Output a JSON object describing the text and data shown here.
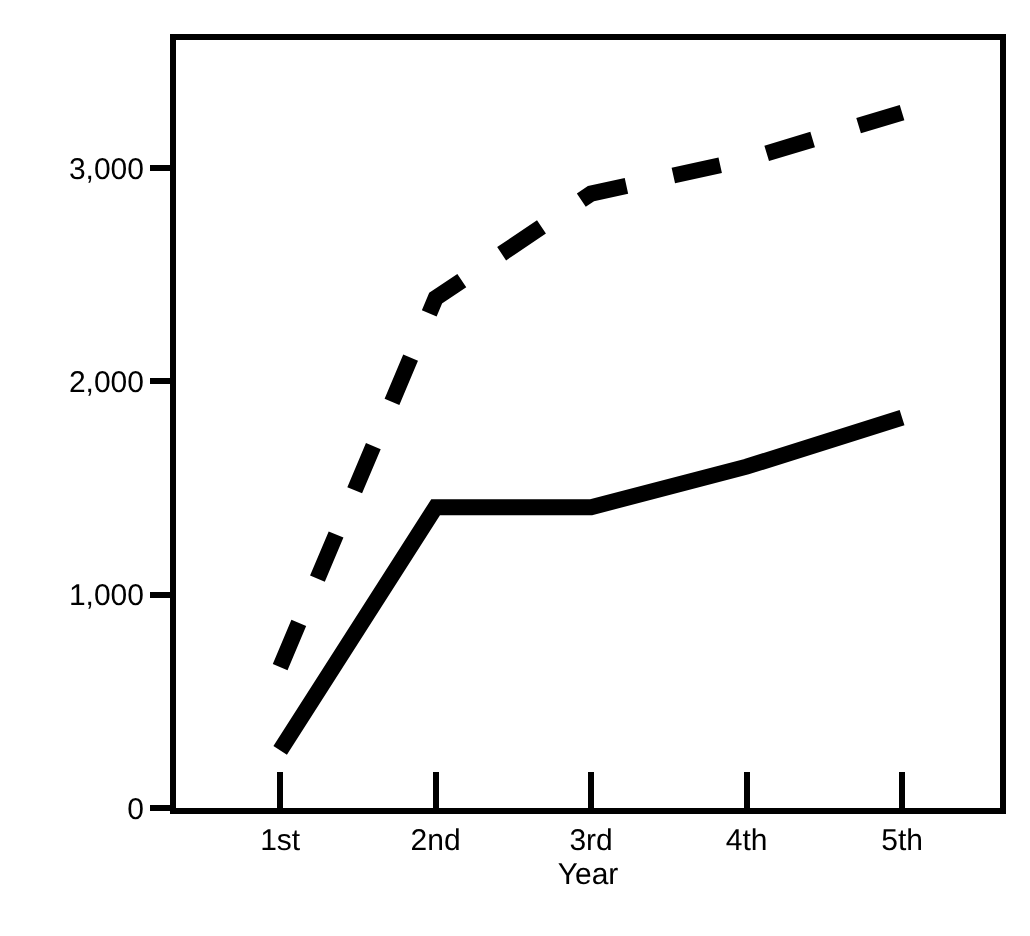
{
  "chart_data": {
    "type": "line",
    "xlabel": "Year",
    "categories": [
      "1st",
      "2nd",
      "3rd",
      "4th",
      "5th"
    ],
    "series": [
      {
        "color": "#000000",
        "line_style": "dashed",
        "values": [
          660,
          2390,
          2880,
          3040,
          3260
        ]
      },
      {
        "color": "#000000",
        "line_style": "solid",
        "values": [
          270,
          1410,
          1410,
          1600,
          1830
        ]
      }
    ],
    "ylim": [
      0,
      3600
    ],
    "yticks": [
      0,
      {
        "value": 1000,
        "label": "1,000"
      },
      {
        "value": 2000,
        "label": "2,000"
      },
      {
        "value": 3000,
        "label": "3,000"
      }
    ],
    "grid": false,
    "marker": "none"
  }
}
